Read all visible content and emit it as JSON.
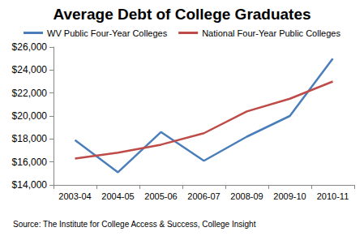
{
  "chart_data": {
    "type": "line",
    "title": "Average Debt of College Graduates",
    "annotation": "Source: The Institute for College Access & Success, College Insight",
    "categories": [
      "2003-04",
      "2004-05",
      "2005-06",
      "2006-07",
      "2008-09",
      "2009-10",
      "2010-11"
    ],
    "series": [
      {
        "name": "WV Public Four-Year Colleges",
        "color": "#4a7ebb",
        "values": [
          17900,
          15100,
          18600,
          16100,
          18200,
          20000,
          25000
        ]
      },
      {
        "name": "National Four-Year Public Colleges",
        "color": "#be4b48",
        "values": [
          16300,
          16800,
          17500,
          18500,
          20400,
          21500,
          23000
        ]
      }
    ],
    "ylim": [
      14000,
      26000
    ],
    "yticks": [
      {
        "value": 14000,
        "label": "$14,000"
      },
      {
        "value": 16000,
        "label": "$16,000"
      },
      {
        "value": 18000,
        "label": "$18,000"
      },
      {
        "value": 20000,
        "label": "$20,000"
      },
      {
        "value": 22000,
        "label": "$22,000"
      },
      {
        "value": 24000,
        "label": "$24,000"
      },
      {
        "value": 26000,
        "label": "$26,000"
      }
    ],
    "grid": false,
    "legend": "top",
    "marker": "none"
  }
}
